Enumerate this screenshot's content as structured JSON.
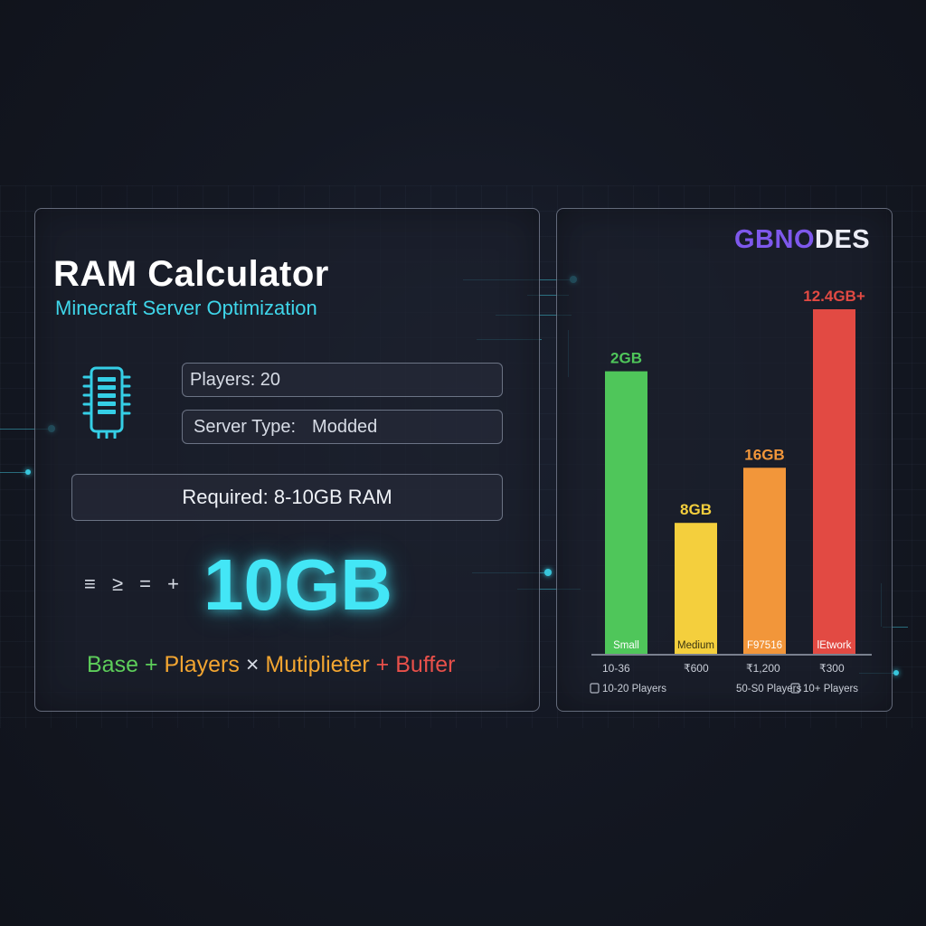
{
  "calculator": {
    "title": "RAM Calculator",
    "subtitle": "Minecraft Server Optimization",
    "players_field": "Players: 20",
    "server_type_label": "Server Type:",
    "server_type_value": "Modded",
    "required": "Required: 8-10GB RAM",
    "operators": "≡ ≥ = +",
    "result": "10GB",
    "formula": {
      "base": "Base",
      "plus1": "+",
      "players": "Players",
      "times": "×",
      "multiplier": "Mutiplieter",
      "plus2": "+",
      "buffer": "Buffer"
    }
  },
  "brand": {
    "logo_part1": "GBNO",
    "logo_part2": "DES"
  },
  "chart_data": {
    "type": "bar",
    "categories": [
      "Small",
      "Medium",
      "F97516",
      "lEtwork"
    ],
    "value_labels": [
      "2GB",
      "8GB",
      "16GB",
      "12.4GB+"
    ],
    "values": [
      2,
      8,
      16,
      12.4
    ],
    "bar_level": [
      0.82,
      0.38,
      0.54,
      1.0
    ],
    "colors": [
      "#4fc65a",
      "#f4cf3d",
      "#f2963a",
      "#e24a43"
    ],
    "prices": [
      "10-36",
      "₹600",
      "₹1,200",
      "₹300"
    ],
    "player_labels": [
      "10-20 Players",
      "",
      "50-S0 Players",
      "10+ Players"
    ],
    "player_icons": [
      true,
      false,
      false,
      true
    ]
  }
}
